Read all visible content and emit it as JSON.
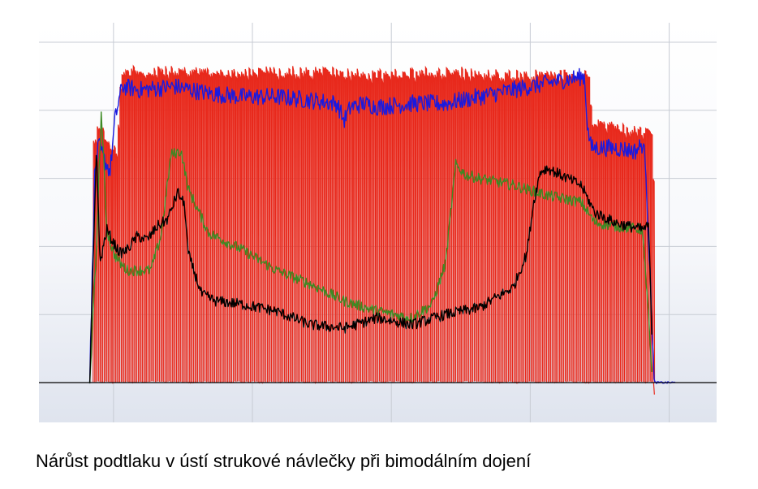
{
  "caption": "Nárůst podtlaku v ústí strukové návlečky při bimodálním dojení",
  "chart_data": {
    "type": "line",
    "title": "",
    "xlabel": "",
    "ylabel": "",
    "xlim": [
      0,
      100
    ],
    "ylim": [
      -5,
      100
    ],
    "grid": true,
    "legend": "none",
    "series": [
      {
        "color": "#e8291c",
        "style": "pulsation-oscillation",
        "envelope_x": [
          7.5,
          8.0,
          9.0,
          10.0,
          11.5,
          12.0,
          40.0,
          50.0,
          60.0,
          70.0,
          80.0,
          81.0,
          81.5,
          89.0,
          90.5,
          91.0
        ],
        "envelope_top": [
          0,
          73,
          78,
          72,
          70,
          93,
          93,
          92,
          93,
          92,
          92,
          92,
          78,
          75,
          75,
          0
        ],
        "base": 0
      },
      {
        "color": "#1a1adf",
        "style": "noisy-line",
        "x": [
          7.5,
          8.2,
          8.8,
          9.5,
          10.5,
          11.2,
          11.8,
          12.3,
          15,
          20,
          25,
          30,
          35,
          40,
          44,
          45,
          46,
          48,
          50,
          55,
          60,
          65,
          70,
          75,
          80.5,
          81,
          81.5,
          85,
          88,
          89,
          89.5,
          90.2,
          90.8,
          92,
          94
        ],
        "y": [
          0,
          60,
          70,
          66,
          62,
          77,
          83,
          87,
          86,
          87,
          85,
          84,
          84,
          83,
          82,
          77,
          81,
          82,
          81,
          82,
          82,
          84,
          86,
          88,
          90,
          74,
          69,
          69,
          68,
          70,
          66,
          30,
          0,
          0,
          0
        ]
      },
      {
        "color": "#3d8a24",
        "style": "noisy-line",
        "x": [
          7.5,
          8.5,
          9.2,
          10,
          11,
          12,
          13,
          14.5,
          16.5,
          18,
          19.5,
          21,
          22,
          25,
          30,
          35,
          40,
          45,
          50,
          55,
          58,
          60,
          61.5,
          63,
          65,
          70,
          75,
          80,
          82,
          85,
          89,
          89.8,
          90.5
        ],
        "y": [
          0,
          40,
          80,
          45,
          38,
          35,
          33,
          33,
          33,
          43,
          67,
          68,
          57,
          44,
          39,
          33,
          29,
          24,
          21,
          19,
          23,
          35,
          64,
          61,
          60,
          58,
          55,
          53,
          47,
          46,
          45,
          25,
          0
        ]
      },
      {
        "color": "#000000",
        "style": "noisy-line",
        "x": [
          7.5,
          8.5,
          9.0,
          10,
          11,
          12,
          13,
          14.5,
          16,
          17.5,
          19,
          20.5,
          21.5,
          22,
          24,
          26,
          30,
          35,
          40,
          45,
          50,
          55,
          60,
          65,
          70,
          72,
          73,
          74,
          75,
          77,
          80,
          82,
          85,
          89,
          90,
          90.5
        ],
        "y": [
          0,
          70,
          35,
          45,
          41,
          38,
          39,
          43,
          42,
          46,
          48,
          56,
          52,
          38,
          26,
          24,
          23,
          21,
          17,
          16,
          19,
          17,
          20,
          22,
          28,
          38,
          53,
          62,
          63,
          61,
          58,
          50,
          47,
          45,
          46,
          8
        ]
      }
    ],
    "x_gridlines": [
      11,
      31.5,
      52,
      72.5,
      93
    ],
    "y_gridlines": [
      0,
      20,
      40,
      60,
      80,
      100
    ]
  }
}
